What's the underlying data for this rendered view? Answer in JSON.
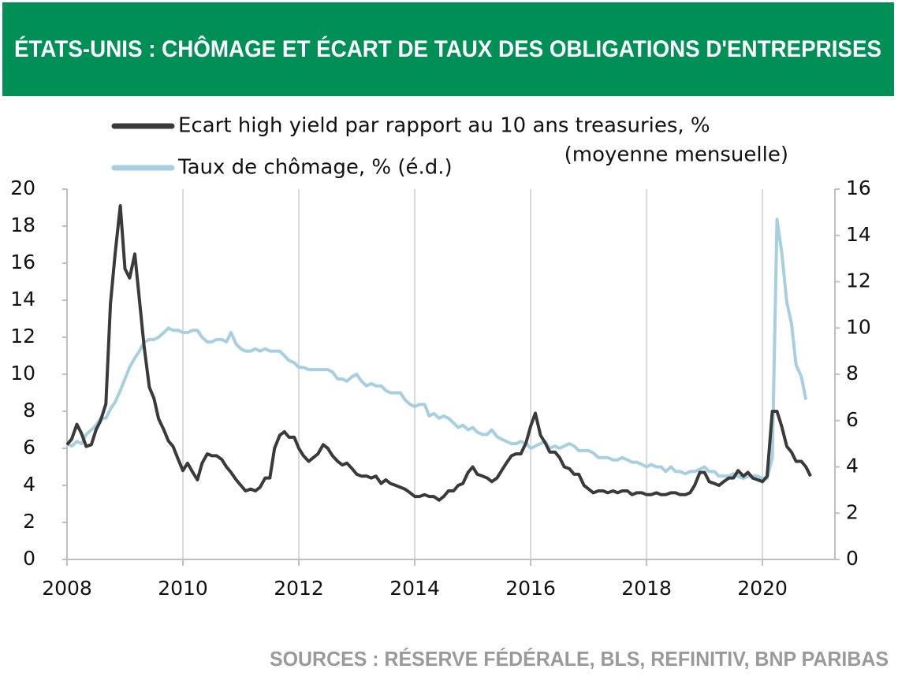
{
  "chart_data": {
    "type": "line",
    "title": "ÉTATS-UNIS : CHÔMAGE ET ÉCART DE TAUX DES OBLIGATIONS D'ENTREPRISES",
    "legend_note": "(moyenne mensuelle)",
    "source": "SOURCES :  RÉSERVE FÉDÉRALE, BLS, REFINITIV, BNP PARIBAS",
    "x": [
      2008,
      2008.08,
      2008.17,
      2008.25,
      2008.33,
      2008.42,
      2008.5,
      2008.58,
      2008.67,
      2008.75,
      2008.83,
      2008.92,
      2009,
      2009.08,
      2009.17,
      2009.25,
      2009.33,
      2009.42,
      2009.5,
      2009.58,
      2009.67,
      2009.75,
      2009.83,
      2009.92,
      2010,
      2010.08,
      2010.17,
      2010.25,
      2010.33,
      2010.42,
      2010.5,
      2010.58,
      2010.67,
      2010.75,
      2010.83,
      2010.92,
      2011,
      2011.08,
      2011.17,
      2011.25,
      2011.33,
      2011.42,
      2011.5,
      2011.58,
      2011.67,
      2011.75,
      2011.83,
      2011.92,
      2012,
      2012.08,
      2012.17,
      2012.25,
      2012.33,
      2012.42,
      2012.5,
      2012.58,
      2012.67,
      2012.75,
      2012.83,
      2012.92,
      2013,
      2013.08,
      2013.17,
      2013.25,
      2013.33,
      2013.42,
      2013.5,
      2013.58,
      2013.67,
      2013.75,
      2013.83,
      2013.92,
      2014,
      2014.08,
      2014.17,
      2014.25,
      2014.33,
      2014.42,
      2014.5,
      2014.58,
      2014.67,
      2014.75,
      2014.83,
      2014.92,
      2015,
      2015.08,
      2015.17,
      2015.25,
      2015.33,
      2015.42,
      2015.5,
      2015.58,
      2015.67,
      2015.75,
      2015.83,
      2015.92,
      2016,
      2016.08,
      2016.17,
      2016.25,
      2016.33,
      2016.42,
      2016.5,
      2016.58,
      2016.67,
      2016.75,
      2016.83,
      2016.92,
      2017,
      2017.08,
      2017.17,
      2017.25,
      2017.33,
      2017.42,
      2017.5,
      2017.58,
      2017.67,
      2017.75,
      2017.83,
      2017.92,
      2018,
      2018.08,
      2018.17,
      2018.25,
      2018.33,
      2018.42,
      2018.5,
      2018.58,
      2018.67,
      2018.75,
      2018.83,
      2018.92,
      2019,
      2019.08,
      2019.17,
      2019.25,
      2019.33,
      2019.42,
      2019.5,
      2019.58,
      2019.67,
      2019.75,
      2019.83,
      2019.92,
      2020,
      2020.08,
      2020.17,
      2020.25,
      2020.33,
      2020.42,
      2020.5,
      2020.58,
      2020.67,
      2020.75,
      2020.83
    ],
    "series": [
      {
        "name": "Ecart high yield par rapport au 10 ans treasuries, %",
        "color": "#3a3a3a",
        "axis": "y",
        "values": [
          6.2,
          6.5,
          7.3,
          6.8,
          6.1,
          6.2,
          7.0,
          7.5,
          8.4,
          13.8,
          16.5,
          19.1,
          15.7,
          15.2,
          16.5,
          14.0,
          11.5,
          9.3,
          8.7,
          7.6,
          7.0,
          6.4,
          6.1,
          5.4,
          4.8,
          5.2,
          4.7,
          4.3,
          5.2,
          5.7,
          5.6,
          5.6,
          5.4,
          5.0,
          4.7,
          4.3,
          4.0,
          3.7,
          3.8,
          3.7,
          3.9,
          4.4,
          4.4,
          6.0,
          6.7,
          6.9,
          6.6,
          6.6,
          6.0,
          5.6,
          5.3,
          5.5,
          5.7,
          6.2,
          6.0,
          5.6,
          5.3,
          5.1,
          5.2,
          4.9,
          4.6,
          4.5,
          4.5,
          4.4,
          4.5,
          4.1,
          4.3,
          4.1,
          4.0,
          3.9,
          3.8,
          3.6,
          3.4,
          3.4,
          3.5,
          3.4,
          3.4,
          3.2,
          3.4,
          3.7,
          3.7,
          4.0,
          4.1,
          4.7,
          5.0,
          4.6,
          4.5,
          4.4,
          4.2,
          4.4,
          4.8,
          5.2,
          5.6,
          5.7,
          5.7,
          6.3,
          7.2,
          7.9,
          6.7,
          6.3,
          5.8,
          5.8,
          5.5,
          5.0,
          4.9,
          4.6,
          4.6,
          4.0,
          3.8,
          3.6,
          3.7,
          3.7,
          3.6,
          3.7,
          3.6,
          3.7,
          3.7,
          3.5,
          3.6,
          3.6,
          3.5,
          3.5,
          3.6,
          3.5,
          3.5,
          3.6,
          3.6,
          3.5,
          3.5,
          3.6,
          4.0,
          4.7,
          4.7,
          4.2,
          4.1,
          4.0,
          4.2,
          4.4,
          4.4,
          4.8,
          4.5,
          4.7,
          4.4,
          4.3,
          4.2,
          4.5,
          8.0,
          8.0,
          7.2,
          6.1,
          5.8,
          5.3,
          5.3,
          5.0,
          4.5
        ]
      },
      {
        "name": "Taux de chômage, % (é.d.)",
        "color": "#a6cfe2",
        "axis": "y2",
        "values": [
          5.0,
          4.9,
          5.1,
          5.0,
          5.4,
          5.6,
          5.8,
          6.1,
          6.1,
          6.5,
          6.8,
          7.3,
          7.8,
          8.3,
          8.7,
          9.0,
          9.4,
          9.5,
          9.5,
          9.6,
          9.8,
          10.0,
          9.9,
          9.9,
          9.8,
          9.8,
          9.9,
          9.9,
          9.6,
          9.4,
          9.4,
          9.5,
          9.5,
          9.4,
          9.8,
          9.3,
          9.1,
          9.0,
          9.0,
          9.1,
          9.0,
          9.1,
          9.0,
          9.0,
          9.0,
          8.8,
          8.6,
          8.5,
          8.3,
          8.3,
          8.2,
          8.2,
          8.2,
          8.2,
          8.2,
          8.1,
          7.8,
          7.8,
          7.7,
          7.9,
          8.0,
          7.7,
          7.5,
          7.6,
          7.5,
          7.5,
          7.3,
          7.2,
          7.2,
          7.2,
          6.9,
          6.7,
          6.6,
          6.7,
          6.7,
          6.2,
          6.3,
          6.1,
          6.2,
          6.1,
          5.9,
          5.7,
          5.8,
          5.6,
          5.7,
          5.5,
          5.4,
          5.4,
          5.6,
          5.3,
          5.2,
          5.1,
          5.0,
          5.0,
          5.1,
          5.0,
          4.8,
          4.9,
          5.0,
          5.1,
          4.8,
          4.9,
          4.8,
          4.9,
          5.0,
          4.9,
          4.7,
          4.7,
          4.7,
          4.6,
          4.4,
          4.4,
          4.4,
          4.3,
          4.3,
          4.4,
          4.3,
          4.2,
          4.2,
          4.1,
          4.0,
          4.1,
          4.0,
          4.0,
          3.8,
          4.0,
          3.8,
          3.8,
          3.7,
          3.8,
          3.8,
          3.9,
          4.0,
          3.8,
          3.8,
          3.6,
          3.6,
          3.6,
          3.7,
          3.6,
          3.5,
          3.6,
          3.6,
          3.6,
          3.5,
          3.5,
          4.4,
          14.7,
          13.3,
          11.1,
          10.2,
          8.4,
          7.9,
          6.9,
          null
        ]
      }
    ],
    "xlim": [
      2008,
      2021.25
    ],
    "xticks": [
      2008,
      2010,
      2012,
      2014,
      2016,
      2018,
      2020
    ],
    "ylim": [
      0,
      20
    ],
    "yticks": [
      0,
      2,
      4,
      6,
      8,
      10,
      12,
      14,
      16,
      18,
      20
    ],
    "y2lim": [
      0,
      16
    ],
    "y2ticks": [
      0,
      2,
      4,
      6,
      8,
      10,
      12,
      14,
      16
    ],
    "grid": "x"
  }
}
